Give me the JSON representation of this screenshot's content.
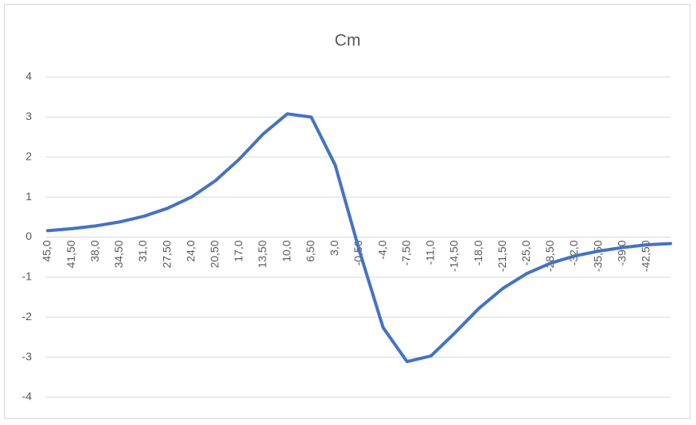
{
  "chart_data": {
    "type": "line",
    "title": "Cm",
    "categories": [
      "45,0",
      "41,50",
      "38,0",
      "34,50",
      "31,0",
      "27,50",
      "24,0",
      "20,50",
      "17,0",
      "13,50",
      "10,0",
      "6,50",
      "3,0",
      "-0,50",
      "-4,0",
      "-7,50",
      "-11,0",
      "-14,50",
      "-18,0",
      "-21,50",
      "-25,0",
      "-28,50",
      "-32,0",
      "-35,50",
      "-39,0",
      "-42,50",
      null
    ],
    "values": [
      0.16,
      0.21,
      0.28,
      0.38,
      0.52,
      0.72,
      1.0,
      1.41,
      1.95,
      2.58,
      3.08,
      3.0,
      1.8,
      -0.32,
      -2.26,
      -3.11,
      -2.97,
      -2.39,
      -1.78,
      -1.28,
      -0.91,
      -0.65,
      -0.47,
      -0.35,
      -0.26,
      -0.19,
      -0.16
    ],
    "color": "#4472c4",
    "ylim": [
      -4,
      4
    ],
    "yticks": [
      -4,
      -3,
      -2,
      -1,
      0,
      1,
      2,
      3,
      4
    ],
    "grid": true
  }
}
